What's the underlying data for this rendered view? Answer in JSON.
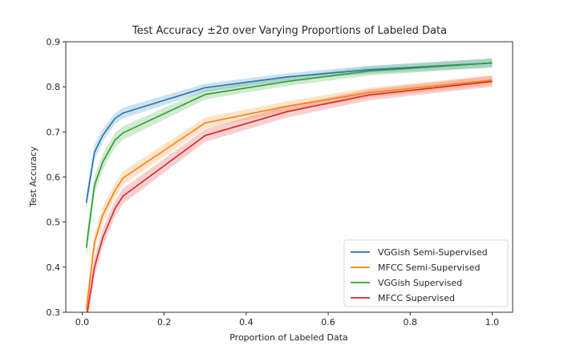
{
  "chart_data": {
    "type": "line",
    "title": "Test Accuracy ±2σ over Varying Proportions of Labeled Data",
    "xlabel": "Proportion of Labeled Data",
    "ylabel": "Test Accuracy",
    "xlim": [
      -0.04,
      1.05
    ],
    "ylim": [
      0.3,
      0.9
    ],
    "xticks": [
      0.0,
      0.2,
      0.4,
      0.6,
      0.8,
      1.0
    ],
    "xtick_labels": [
      "0.0",
      "0.2",
      "0.4",
      "0.6",
      "0.8",
      "1.0"
    ],
    "yticks": [
      0.3,
      0.4,
      0.5,
      0.6,
      0.7,
      0.8,
      0.9
    ],
    "ytick_labels": [
      "0.3",
      "0.4",
      "0.5",
      "0.6",
      "0.7",
      "0.8",
      "0.9"
    ],
    "grid": false,
    "legend_position": "lower-right",
    "x": [
      0.01,
      0.03,
      0.05,
      0.08,
      0.1,
      0.3,
      0.5,
      0.7,
      1.0
    ],
    "series": [
      {
        "name": "VGGish Semi-Supervised",
        "color": "#1f77b4",
        "values": [
          0.543,
          0.655,
          0.692,
          0.73,
          0.742,
          0.798,
          0.822,
          0.838,
          0.853
        ],
        "band": [
          0.02,
          0.016,
          0.014,
          0.012,
          0.012,
          0.009,
          0.008,
          0.009,
          0.01
        ]
      },
      {
        "name": "MFCC Semi-Supervised",
        "color": "#ff7f0e",
        "values": [
          0.305,
          0.455,
          0.515,
          0.57,
          0.598,
          0.72,
          0.757,
          0.787,
          0.815
        ],
        "band": [
          0.022,
          0.02,
          0.018,
          0.016,
          0.015,
          0.012,
          0.011,
          0.011,
          0.011
        ]
      },
      {
        "name": "VGGish Supervised",
        "color": "#2ca02c",
        "values": [
          0.443,
          0.582,
          0.633,
          0.682,
          0.698,
          0.783,
          0.812,
          0.835,
          0.853
        ],
        "band": [
          0.025,
          0.02,
          0.018,
          0.016,
          0.015,
          0.011,
          0.01,
          0.01,
          0.01
        ]
      },
      {
        "name": "MFCC Supervised",
        "color": "#d62728",
        "values": [
          0.285,
          0.4,
          0.465,
          0.53,
          0.558,
          0.692,
          0.745,
          0.782,
          0.812
        ],
        "band": [
          0.025,
          0.022,
          0.02,
          0.018,
          0.017,
          0.014,
          0.013,
          0.012,
          0.012
        ]
      }
    ]
  }
}
